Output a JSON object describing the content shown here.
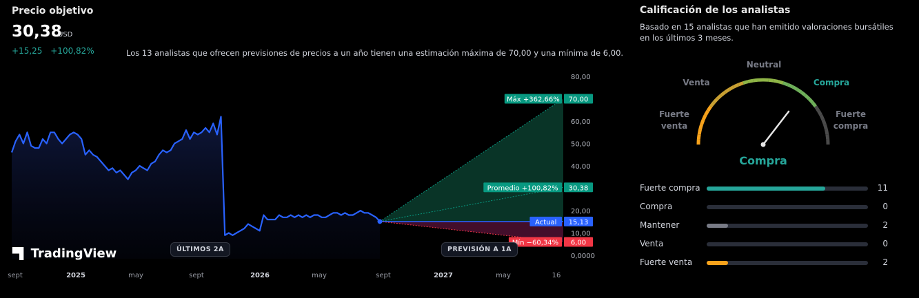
{
  "header": {
    "title": "Precio objetivo",
    "price": "30,38",
    "currency": "USD",
    "change_abs": "+15,25",
    "change_pct": "+100,82%",
    "summary": "Los 13 analistas que ofrecen previsiones de precios a un año tienen una estimación máxima de 70,00 y una mínima de 6,00."
  },
  "chart_data": {
    "type": "line",
    "x_tick_labels": [
      "sept",
      "2025",
      "may",
      "sept",
      "2026",
      "may",
      "sept",
      "2027",
      "may",
      "16"
    ],
    "y_tick_labels": [
      "80,00",
      "70,00",
      "60,00",
      "50,00",
      "40,00",
      "20,00",
      "10,00",
      "0,0000"
    ],
    "ylim": [
      0,
      80
    ],
    "series": [
      {
        "values": [
          46,
          51,
          54,
          50,
          55,
          49,
          48,
          48,
          52,
          50,
          55,
          55,
          52,
          50,
          52,
          54,
          55,
          54,
          52,
          45,
          47,
          45,
          44,
          42,
          40,
          38,
          39,
          37,
          38,
          36,
          34,
          37,
          38,
          40,
          39,
          38,
          41,
          42,
          45,
          47,
          46,
          47,
          50,
          51,
          52,
          56,
          52,
          55,
          54,
          55,
          57,
          55,
          59,
          54,
          62,
          9,
          10,
          9,
          10,
          11,
          12,
          14,
          13,
          12,
          11,
          18,
          16,
          16,
          16,
          18,
          17,
          17,
          18,
          17,
          18,
          17,
          18,
          17,
          18,
          18,
          17,
          17,
          18,
          19,
          19,
          18,
          19,
          18,
          18,
          19,
          20,
          19,
          19,
          18,
          17,
          15.13
        ]
      }
    ],
    "forecast": {
      "current": 15.13,
      "max": 70.0,
      "average": 30.38,
      "min": 6.0
    },
    "labels": {
      "max_label": "Máx +362,66%",
      "max_value": "70,00",
      "avg_label": "Promedio +100,82%",
      "avg_value": "30,38",
      "current_label": "Actual",
      "current_value": "15,13",
      "min_label": "Mín −60,34%",
      "min_value": "6,00"
    },
    "colors": {
      "line": "#2962ff",
      "max": "#089981",
      "avg": "#089981",
      "current": "#2962ff",
      "min": "#f23645"
    },
    "range_buttons": {
      "past": "ÚLTIMOS 2A",
      "forecast": "PREVISIÓN A 1A"
    }
  },
  "branding": {
    "logo_text": "TradingView"
  },
  "analysts": {
    "title": "Calificación de los analistas",
    "description": "Basado en 15 analistas que han emitido valoraciones bursátiles en los últimos 3 meses.",
    "gauge_labels": {
      "strong_sell": [
        "Fuerte",
        "venta"
      ],
      "sell": "Venta",
      "neutral": "Neutral",
      "buy": "Compra",
      "strong_buy": [
        "Fuerte",
        "compra"
      ]
    },
    "gauge_result": "Compra",
    "ratings": [
      {
        "label": "Fuerte compra",
        "count": "11",
        "fraction": 0.733,
        "color": "#26a69a"
      },
      {
        "label": "Compra",
        "count": "0",
        "fraction": 0,
        "color": "#26a69a"
      },
      {
        "label": "Mantener",
        "count": "2",
        "fraction": 0.133,
        "color": "#787b86"
      },
      {
        "label": "Venta",
        "count": "0",
        "fraction": 0,
        "color": "#f7a21b"
      },
      {
        "label": "Fuerte venta",
        "count": "2",
        "fraction": 0.133,
        "color": "#f7a21b"
      }
    ]
  }
}
